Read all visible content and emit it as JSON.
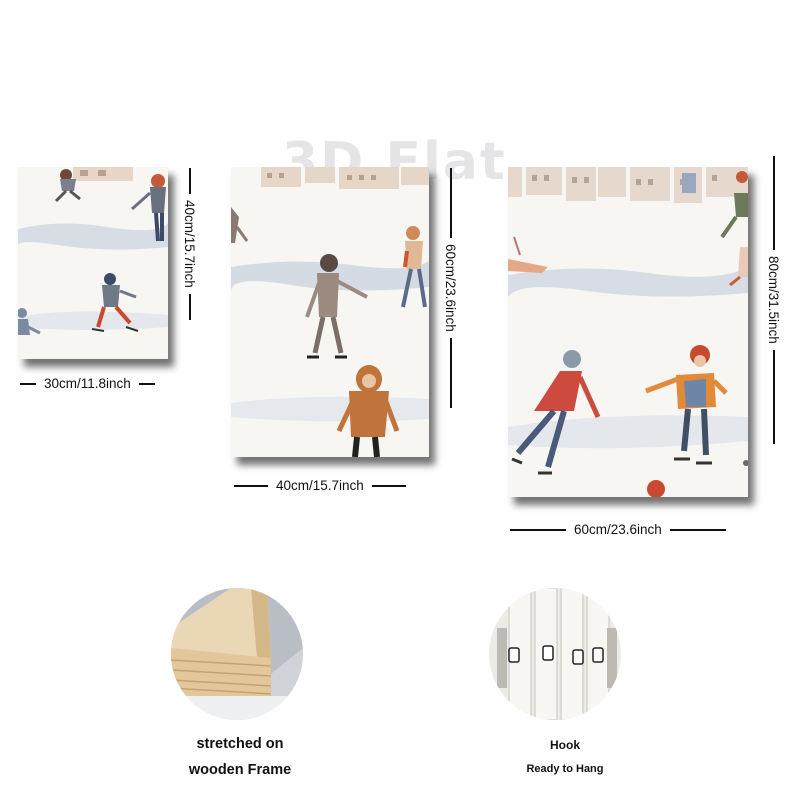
{
  "watermark": "3D Flat",
  "panels": [
    {
      "width_label": "30cm/11.8inch",
      "height_label": "40cm/15.7inch"
    },
    {
      "width_label": "40cm/15.7inch",
      "height_label": "60cm/23.6inch"
    },
    {
      "width_label": "60cm/23.6inch",
      "height_label": "80cm/31.5inch"
    }
  ],
  "details": {
    "frame": {
      "caption_line1": "stretched on",
      "caption_line2": "wooden Frame"
    },
    "hook": {
      "caption_line1": "Hook",
      "caption_line2": "Ready to Hang"
    }
  },
  "colors": {
    "snow": "#f7f6f3",
    "ice_blue": "#c7cfdc",
    "orange_coat": "#e08a3a",
    "red_coat": "#cc4a3e",
    "wood": "#d9b98c"
  }
}
